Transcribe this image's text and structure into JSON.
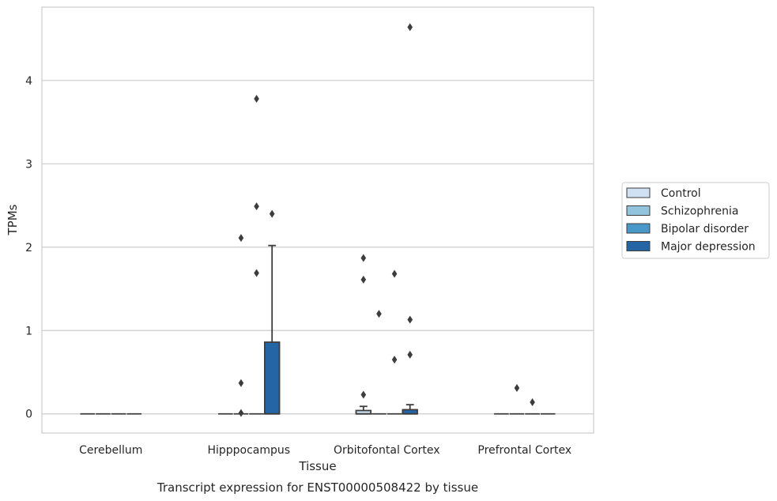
{
  "chart_data": {
    "type": "box",
    "caption": "Transcript expression for ENST00000508422 by tissue",
    "xlabel": "Tissue",
    "ylabel": "TPMs",
    "ylim": [
      -0.23,
      4.88
    ],
    "yticks": [
      "0",
      "1",
      "2",
      "3",
      "4"
    ],
    "grid": "horizontal",
    "legend_position": "right",
    "categories": [
      "Cerebellum",
      "Hipppocampus",
      "Orbitofontal Cortex",
      "Prefrontal Cortex"
    ],
    "series": [
      {
        "name": "Control",
        "color": "#cfe1f2",
        "boxes": [
          {
            "q1": 0,
            "median": 0,
            "q3": 0,
            "whisker_low": 0,
            "whisker_high": 0,
            "outliers": []
          },
          {
            "q1": 0,
            "median": 0,
            "q3": 0,
            "whisker_low": 0,
            "whisker_high": 0,
            "outliers": []
          },
          {
            "q1": 0,
            "median": 0,
            "q3": 0.04,
            "whisker_low": 0,
            "whisker_high": 0.09,
            "outliers": [
              0.23,
              1.61,
              1.87
            ]
          },
          {
            "q1": 0,
            "median": 0,
            "q3": 0,
            "whisker_low": 0,
            "whisker_high": 0,
            "outliers": []
          }
        ]
      },
      {
        "name": "Schizophrenia",
        "color": "#93c4de",
        "boxes": [
          {
            "q1": 0,
            "median": 0,
            "q3": 0,
            "whisker_low": 0,
            "whisker_high": 0,
            "outliers": []
          },
          {
            "q1": 0,
            "median": 0,
            "q3": 0,
            "whisker_low": 0,
            "whisker_high": 0,
            "outliers": [
              0.01,
              0.37,
              2.11
            ]
          },
          {
            "q1": 0,
            "median": 0,
            "q3": 0,
            "whisker_low": 0,
            "whisker_high": 0,
            "outliers": [
              1.2
            ]
          },
          {
            "q1": 0,
            "median": 0,
            "q3": 0,
            "whisker_low": 0,
            "whisker_high": 0,
            "outliers": [
              0.31
            ]
          }
        ]
      },
      {
        "name": "Bipolar disorder",
        "color": "#4a98c9",
        "boxes": [
          {
            "q1": 0,
            "median": 0,
            "q3": 0,
            "whisker_low": 0,
            "whisker_high": 0,
            "outliers": []
          },
          {
            "q1": 0,
            "median": 0,
            "q3": 0,
            "whisker_low": 0,
            "whisker_high": 0,
            "outliers": [
              1.69,
              2.49,
              3.78
            ]
          },
          {
            "q1": 0,
            "median": 0,
            "q3": 0,
            "whisker_low": 0,
            "whisker_high": 0,
            "outliers": [
              0.65,
              1.68
            ]
          },
          {
            "q1": 0,
            "median": 0,
            "q3": 0,
            "whisker_low": 0,
            "whisker_high": 0,
            "outliers": [
              0.14
            ]
          }
        ]
      },
      {
        "name": "Major depression",
        "color": "#2465a6",
        "boxes": [
          {
            "q1": 0,
            "median": 0,
            "q3": 0,
            "whisker_low": 0,
            "whisker_high": 0,
            "outliers": []
          },
          {
            "q1": 0,
            "median": 0,
            "q3": 0.86,
            "whisker_low": 0,
            "whisker_high": 2.02,
            "outliers": [
              2.4
            ]
          },
          {
            "q1": 0,
            "median": 0,
            "q3": 0.05,
            "whisker_low": 0,
            "whisker_high": 0.11,
            "outliers": [
              0.71,
              1.13,
              4.64
            ]
          },
          {
            "q1": 0,
            "median": 0,
            "q3": 0,
            "whisker_low": 0,
            "whisker_high": 0,
            "outliers": []
          }
        ]
      }
    ]
  }
}
